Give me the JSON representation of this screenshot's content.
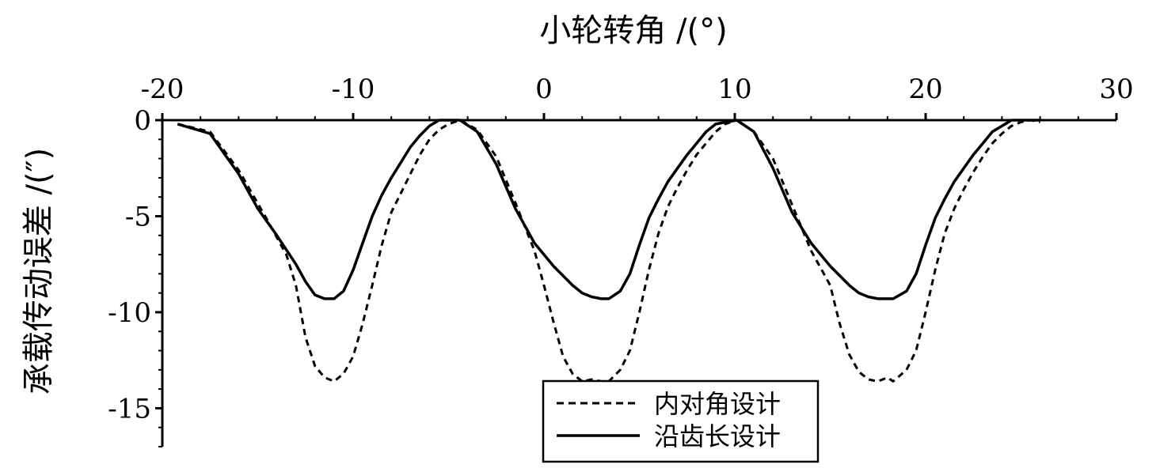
{
  "chart_data": {
    "type": "line",
    "xlabel": "小轮转角 /(°)",
    "ylabel": "承载传动误差 /(″)",
    "xlim": [
      -20,
      30
    ],
    "ylim": [
      -17,
      0
    ],
    "x_ticks": [
      "-20",
      "-10",
      "0",
      "10",
      "20",
      "30"
    ],
    "y_ticks": [
      "0",
      "-5",
      "-10",
      "-15"
    ],
    "x_axis_position": "top",
    "grid": false,
    "legend_position": "bottom-center",
    "series": [
      {
        "name": "内对角设计",
        "style": "dashed",
        "color": "#000000",
        "x": [
          -19.2,
          -17.5,
          -16,
          -14.5,
          -13.5,
          -13,
          -12.5,
          -12,
          -11.5,
          -11,
          -10.5,
          -10,
          -9.5,
          -9,
          -8.5,
          -8,
          -7.5,
          -7,
          -6.5,
          -6,
          -5.5,
          -5,
          -4.4,
          -3.5,
          -2.5,
          -1.5,
          -0.5,
          0,
          0.5,
          1,
          1.5,
          2,
          2.5,
          3,
          3.4,
          4,
          4.5,
          5,
          5.5,
          6,
          6.5,
          7,
          7.5,
          8,
          8.5,
          9,
          9.5,
          10.1,
          11,
          12,
          13,
          14,
          15,
          15.5,
          16,
          16.5,
          17,
          17.5,
          18,
          18.3,
          19,
          19.5,
          20,
          20.5,
          21,
          21.5,
          22,
          22.5,
          23,
          23.5,
          24,
          24.5,
          25,
          25.5,
          26
        ],
        "y": [
          -0.2,
          -0.6,
          -2.6,
          -5.2,
          -7.0,
          -8.6,
          -11.3,
          -12.8,
          -13.4,
          -13.6,
          -13.2,
          -12.3,
          -10.6,
          -8.6,
          -6.5,
          -4.8,
          -3.8,
          -2.8,
          -1.8,
          -1.0,
          -0.5,
          -0.2,
          0,
          -0.5,
          -1.9,
          -4.3,
          -6.8,
          -8.6,
          -10.5,
          -12.3,
          -13.2,
          -13.6,
          -13.5,
          -13.6,
          -13.6,
          -13.0,
          -12.0,
          -10.0,
          -7.8,
          -5.9,
          -4.5,
          -3.5,
          -2.6,
          -1.8,
          -1.2,
          -0.6,
          -0.2,
          0,
          -0.6,
          -2.0,
          -4.4,
          -6.8,
          -8.6,
          -10.6,
          -12.2,
          -13.1,
          -13.5,
          -13.6,
          -13.4,
          -13.6,
          -13.0,
          -12.0,
          -10.0,
          -7.8,
          -5.9,
          -4.6,
          -3.6,
          -2.7,
          -1.9,
          -1.2,
          -0.7,
          -0.3,
          -0.1,
          0,
          -0.1
        ]
      },
      {
        "name": "沿齿长设计",
        "style": "solid",
        "color": "#000000",
        "x": [
          -19.2,
          -17.5,
          -16,
          -15,
          -14,
          -13,
          -12.5,
          -12,
          -11.5,
          -11,
          -10.5,
          -10,
          -9.5,
          -9,
          -8.5,
          -8,
          -7.5,
          -7,
          -6.5,
          -6,
          -5.5,
          -4.4,
          -3.5,
          -2.5,
          -1.5,
          -0.5,
          0.5,
          1.5,
          2,
          2.5,
          3,
          3.4,
          4,
          4.5,
          5,
          5.5,
          6,
          6.5,
          7,
          7.5,
          8,
          8.5,
          9,
          10.1,
          11,
          12,
          13,
          14,
          15,
          16,
          16.5,
          17,
          17.5,
          18,
          18.3,
          19,
          19.5,
          20,
          20.5,
          21,
          21.5,
          22,
          22.5,
          23,
          23.5,
          24.5,
          26
        ],
        "y": [
          -0.2,
          -0.7,
          -2.8,
          -4.6,
          -6.0,
          -7.5,
          -8.4,
          -9.1,
          -9.3,
          -9.3,
          -8.9,
          -7.8,
          -6.4,
          -5.0,
          -3.9,
          -3.0,
          -2.2,
          -1.4,
          -0.8,
          -0.3,
          0,
          0,
          -0.6,
          -2.3,
          -4.6,
          -6.4,
          -7.6,
          -8.6,
          -9.0,
          -9.2,
          -9.3,
          -9.3,
          -8.9,
          -8.0,
          -6.5,
          -5.1,
          -4.1,
          -3.2,
          -2.5,
          -1.8,
          -1.2,
          -0.6,
          -0.2,
          0,
          -0.6,
          -2.5,
          -4.8,
          -6.4,
          -7.6,
          -8.6,
          -9.0,
          -9.2,
          -9.3,
          -9.3,
          -9.3,
          -8.9,
          -8.0,
          -6.5,
          -5.1,
          -4.1,
          -3.2,
          -2.5,
          -1.8,
          -1.2,
          -0.6,
          0,
          0
        ]
      }
    ]
  }
}
